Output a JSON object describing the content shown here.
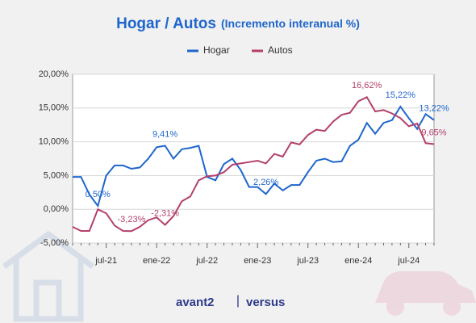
{
  "chart_data": {
    "type": "line",
    "title": "Hogar / Autos",
    "subtitle": "(Incremento interanual %)",
    "categories": [
      null,
      null,
      null,
      null,
      "jul-21",
      null,
      null,
      null,
      null,
      null,
      "ene-22",
      null,
      null,
      null,
      null,
      null,
      "jul-22",
      null,
      null,
      null,
      null,
      null,
      "ene-23",
      null,
      null,
      null,
      null,
      null,
      "jul-23",
      null,
      null,
      null,
      null,
      null,
      "ene-24",
      null,
      null,
      null,
      null,
      null,
      "jul-24",
      null,
      null,
      null
    ],
    "series": [
      {
        "name": "Hogar",
        "color": "#1f66cc",
        "values": [
          4.8,
          4.8,
          2.2,
          0.5,
          5.0,
          6.5,
          6.5,
          6.0,
          6.2,
          7.5,
          9.2,
          9.41,
          7.5,
          8.9,
          9.1,
          9.4,
          4.8,
          4.3,
          6.7,
          7.5,
          5.8,
          3.3,
          3.3,
          2.26,
          3.8,
          2.8,
          3.6,
          3.6,
          5.5,
          7.2,
          7.5,
          7.0,
          7.1,
          9.4,
          10.3,
          12.8,
          11.2,
          12.8,
          13.2,
          15.22,
          13.5,
          11.9,
          14.1,
          13.22
        ],
        "value_labels": [
          null,
          null,
          null,
          "0,50%",
          null,
          null,
          null,
          null,
          null,
          null,
          null,
          "9,41%",
          null,
          null,
          null,
          null,
          null,
          null,
          null,
          null,
          null,
          null,
          null,
          "2,26%",
          null,
          null,
          null,
          null,
          null,
          null,
          null,
          null,
          null,
          null,
          null,
          null,
          null,
          null,
          null,
          "15,22%",
          null,
          null,
          null,
          "13,22%"
        ]
      },
      {
        "name": "Autos",
        "color": "#b3406b",
        "values": [
          -2.6,
          -3.2,
          -3.2,
          0,
          -0.6,
          -2.4,
          -3.2,
          -3.23,
          -2.6,
          -1.6,
          -1.2,
          -2.31,
          -1.0,
          1.2,
          1.9,
          4.3,
          4.9,
          5.0,
          5.5,
          6.6,
          6.8,
          7.0,
          7.2,
          6.8,
          8.2,
          7.8,
          9.9,
          9.6,
          11.0,
          11.8,
          11.6,
          13.0,
          14.0,
          14.3,
          16.0,
          16.62,
          14.5,
          14.7,
          14.2,
          13.5,
          12.3,
          12.7,
          9.8,
          9.65
        ],
        "value_labels": [
          null,
          null,
          null,
          null,
          null,
          null,
          null,
          "-3,23%",
          null,
          null,
          null,
          "-2,31%",
          null,
          null,
          null,
          null,
          null,
          null,
          null,
          null,
          null,
          null,
          null,
          null,
          null,
          null,
          null,
          null,
          null,
          null,
          null,
          null,
          null,
          null,
          null,
          "16,62%",
          null,
          null,
          null,
          null,
          null,
          null,
          null,
          "9,65%"
        ]
      }
    ],
    "ylim": [
      -5,
      20
    ],
    "yticks": [
      {
        "value": -5,
        "label": "-5,00%"
      },
      {
        "value": 0,
        "label": "0,00%"
      },
      {
        "value": 5,
        "label": "5,00%"
      },
      {
        "value": 10,
        "label": "10,00%"
      },
      {
        "value": 15,
        "label": "15,00%"
      },
      {
        "value": 20,
        "label": "20,00%"
      }
    ],
    "grid": true,
    "legend": "top"
  },
  "footer": {
    "brand1": "avant2",
    "separator": "|",
    "brand2": "versus"
  }
}
